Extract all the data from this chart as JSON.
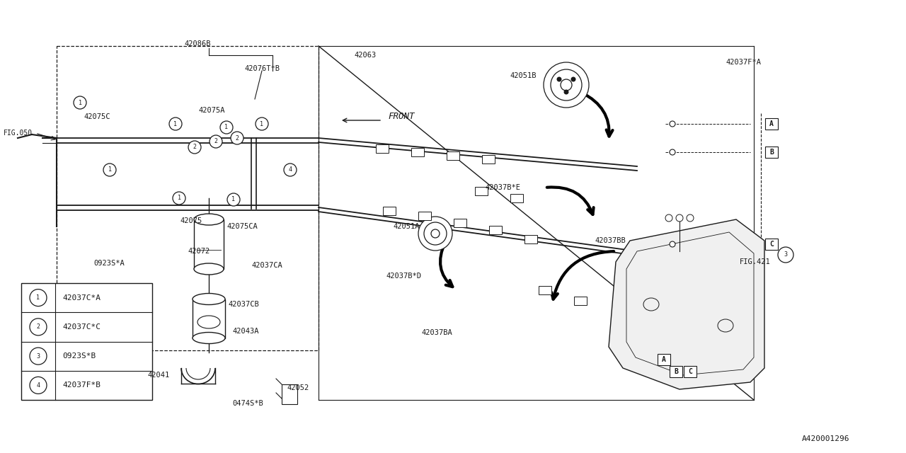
{
  "bg_color": "#ffffff",
  "line_color": "#1a1a1a",
  "fig_ref": "A420001296",
  "legend": [
    {
      "n": "1",
      "code": "42037C*A"
    },
    {
      "n": "2",
      "code": "42037C*C"
    },
    {
      "n": "3",
      "code": "0923S*B"
    },
    {
      "n": "4",
      "code": "42037F*B"
    }
  ]
}
